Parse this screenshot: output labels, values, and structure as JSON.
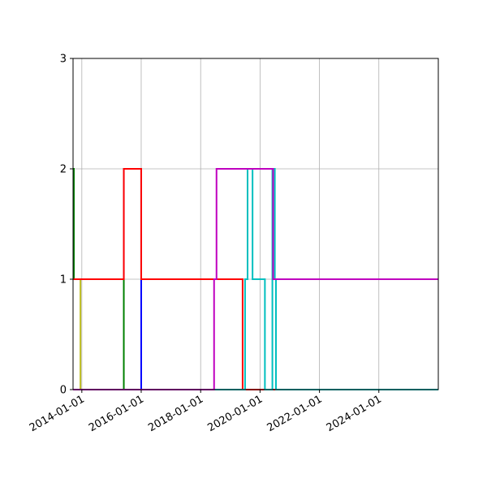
{
  "chart_data": {
    "type": "line",
    "step": "post",
    "title": "",
    "xlabel": "",
    "ylabel": "",
    "xlim": [
      "2013-09-15",
      "2026-01-01"
    ],
    "ylim": [
      0,
      3
    ],
    "grid": true,
    "y_ticks": [
      0,
      1,
      2,
      3
    ],
    "x_ticks": [
      "2014-01-01",
      "2016-01-01",
      "2018-01-01",
      "2020-01-01",
      "2022-01-01",
      "2024-01-01"
    ],
    "x_tick_labels": [
      "2014-01-01",
      "2016-01-01",
      "2018-01-01",
      "2020-01-01",
      "2022-01-01",
      "2024-01-01"
    ],
    "series": [
      {
        "color": "#bcbd22",
        "points": [
          [
            "2013-09-15",
            1
          ],
          [
            "2013-12-15",
            0
          ],
          [
            "2026-01-01",
            0
          ]
        ]
      },
      {
        "color": "#008000",
        "points": [
          [
            "2013-09-15",
            2
          ],
          [
            "2013-09-25",
            1
          ],
          [
            "2015-06-01",
            0
          ],
          [
            "2026-01-01",
            0
          ]
        ]
      },
      {
        "color": "#0000ff",
        "points": [
          [
            "2013-09-15",
            1
          ],
          [
            "2015-06-01",
            2
          ],
          [
            "2016-01-01",
            0
          ],
          [
            "2026-01-01",
            0
          ]
        ]
      },
      {
        "color": "#ff0000",
        "points": [
          [
            "2013-09-15",
            1
          ],
          [
            "2015-06-01",
            2
          ],
          [
            "2015-08-15",
            2
          ],
          [
            "2016-01-01",
            1
          ],
          [
            "2016-03-01",
            1
          ],
          [
            "2019-06-01",
            0
          ],
          [
            "2026-01-01",
            0
          ]
        ]
      },
      {
        "color": "#00bfbf",
        "points": [
          [
            "2013-09-15",
            0
          ],
          [
            "2019-07-01",
            1
          ],
          [
            "2019-08-01",
            2
          ],
          [
            "2019-10-01",
            1
          ],
          [
            "2020-03-01",
            0
          ],
          [
            "2020-06-01",
            2
          ],
          [
            "2020-07-01",
            1
          ],
          [
            "2020-07-15",
            0
          ],
          [
            "2026-01-01",
            0
          ]
        ]
      },
      {
        "color": "#bf00bf",
        "points": [
          [
            "2013-09-15",
            0
          ],
          [
            "2018-06-15",
            1
          ],
          [
            "2018-07-15",
            2
          ],
          [
            "2020-06-10",
            1
          ],
          [
            "2026-01-01",
            1
          ]
        ]
      }
    ]
  }
}
